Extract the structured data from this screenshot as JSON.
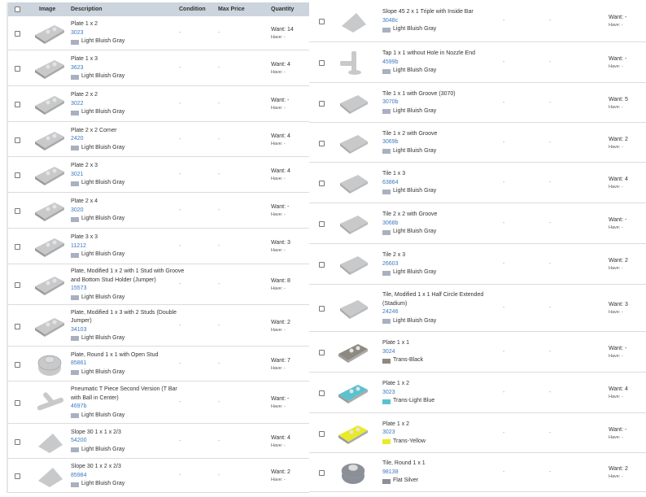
{
  "header": {
    "image": "Image",
    "description": "Description",
    "condition": "Condition",
    "max_price": "Max Price",
    "quantity": "Quantity"
  },
  "left_items": [
    {
      "name": "Plate 1 x 2",
      "number": "3023",
      "color": "Light Bluish Gray",
      "swatch": "#a9b0c0",
      "condition": "-",
      "max_price": "-",
      "want": "Want: 14",
      "have": "Have: -",
      "icon": "plate-1x2-icon"
    },
    {
      "name": "Plate 1 x 3",
      "number": "3623",
      "color": "Light Bluish Gray",
      "swatch": "#a9b0c0",
      "condition": "-",
      "max_price": "-",
      "want": "Want: 4",
      "have": "Have: -",
      "icon": "plate-1x3-icon"
    },
    {
      "name": "Plate 2 x 2",
      "number": "3022",
      "color": "Light Bluish Gray",
      "swatch": "#a9b0c0",
      "condition": "-",
      "max_price": "-",
      "want": "Want: -",
      "have": "Have: -",
      "icon": "plate-2x2-icon"
    },
    {
      "name": "Plate 2 x 2 Corner",
      "number": "2420",
      "color": "Light Bluish Gray",
      "swatch": "#a9b0c0",
      "condition": "-",
      "max_price": "-",
      "want": "Want: 4",
      "have": "Have: -",
      "icon": "plate-corner-icon"
    },
    {
      "name": "Plate 2 x 3",
      "number": "3021",
      "color": "Light Bluish Gray",
      "swatch": "#a9b0c0",
      "condition": "-",
      "max_price": "-",
      "want": "Want: 4",
      "have": "Have: -",
      "icon": "plate-2x3-icon"
    },
    {
      "name": "Plate 2 x 4",
      "number": "3020",
      "color": "Light Bluish Gray",
      "swatch": "#a9b0c0",
      "condition": "-",
      "max_price": "-",
      "want": "Want: -",
      "have": "Have: -",
      "icon": "plate-2x4-icon"
    },
    {
      "name": "Plate 3 x 3",
      "number": "11212",
      "color": "Light Bluish Gray",
      "swatch": "#a9b0c0",
      "condition": "-",
      "max_price": "-",
      "want": "Want: 3",
      "have": "Have: -",
      "icon": "plate-3x3-icon"
    },
    {
      "name": "Plate, Modified 1 x 2 with 1 Stud with Groove and Bottom Stud Holder (Jumper)",
      "number": "15573",
      "color": "Light Bluish Gray",
      "swatch": "#a9b0c0",
      "condition": "-",
      "max_price": "-",
      "want": "Want: 8",
      "have": "Have: -",
      "icon": "jumper-plate-icon"
    },
    {
      "name": "Plate, Modified 1 x 3 with 2 Studs (Double Jumper)",
      "number": "34103",
      "color": "Light Bluish Gray",
      "swatch": "#a9b0c0",
      "condition": "-",
      "max_price": "-",
      "want": "Want: 2",
      "have": "Have: -",
      "icon": "double-jumper-icon"
    },
    {
      "name": "Plate, Round 1 x 1 with Open Stud",
      "number": "85861",
      "color": "Light Bluish Gray",
      "swatch": "#a9b0c0",
      "condition": "-",
      "max_price": "-",
      "want": "Want: 7",
      "have": "Have: -",
      "icon": "round-plate-icon"
    },
    {
      "name": "Pneumatic T Piece Second Version (T Bar with Ball in Center)",
      "number": "4697b",
      "color": "Light Bluish Gray",
      "swatch": "#a9b0c0",
      "condition": "-",
      "max_price": "-",
      "want": "Want: -",
      "have": "Have: -",
      "icon": "t-piece-icon"
    },
    {
      "name": "Slope 30 1 x 1 x 2/3",
      "number": "54200",
      "color": "Light Bluish Gray",
      "swatch": "#a9b0c0",
      "condition": "-",
      "max_price": "-",
      "want": "Want: 4",
      "have": "Have: -",
      "icon": "slope-icon"
    },
    {
      "name": "Slope 30 1 x 2 x 2/3",
      "number": "85984",
      "color": "Light Bluish Gray",
      "swatch": "#a9b0c0",
      "condition": "-",
      "max_price": "-",
      "want": "Want: 2",
      "have": "Have: -",
      "icon": "slope-icon"
    }
  ],
  "right_items": [
    {
      "name": "Slope 45 2 x 1 Triple with Inside Bar",
      "number": "3048c",
      "color": "Light Bluish Gray",
      "swatch": "#a9b0c0",
      "condition": "-",
      "max_price": "-",
      "want": "Want: -",
      "have": "Have: -",
      "icon": "slope-triple-icon"
    },
    {
      "name": "Tap 1 x 1 without Hole in Nozzle End",
      "number": "4599b",
      "color": "Light Bluish Gray",
      "swatch": "#a9b0c0",
      "condition": "-",
      "max_price": "-",
      "want": "Want: -",
      "have": "Have: -",
      "icon": "tap-icon"
    },
    {
      "name": "Tile 1 x 1 with Groove (3070)",
      "number": "3070b",
      "color": "Light Bluish Gray",
      "swatch": "#a9b0c0",
      "condition": "-",
      "max_price": "-",
      "want": "Want: 5",
      "have": "Have: -",
      "icon": "tile-1x1-icon"
    },
    {
      "name": "Tile 1 x 2 with Groove",
      "number": "3069b",
      "color": "Light Bluish Gray",
      "swatch": "#a9b0c0",
      "condition": "-",
      "max_price": "-",
      "want": "Want: 2",
      "have": "Have: -",
      "icon": "tile-1x2-icon"
    },
    {
      "name": "Tile 1 x 3",
      "number": "63864",
      "color": "Light Bluish Gray",
      "swatch": "#a9b0c0",
      "condition": "-",
      "max_price": "-",
      "want": "Want: 4",
      "have": "Have: -",
      "icon": "tile-1x3-icon"
    },
    {
      "name": "Tile 2 x 2 with Groove",
      "number": "3068b",
      "color": "Light Bluish Gray",
      "swatch": "#a9b0c0",
      "condition": "-",
      "max_price": "-",
      "want": "Want: -",
      "have": "Have: -",
      "icon": "tile-2x2-icon"
    },
    {
      "name": "Tile 2 x 3",
      "number": "26603",
      "color": "Light Bluish Gray",
      "swatch": "#a9b0c0",
      "condition": "-",
      "max_price": "-",
      "want": "Want: 2",
      "have": "Have: -",
      "icon": "tile-2x3-icon"
    },
    {
      "name": "Tile, Modified 1 x 1 Half Circle Extended (Stadium)",
      "number": "24246",
      "color": "Light Bluish Gray",
      "swatch": "#a9b0c0",
      "condition": "-",
      "max_price": "-",
      "want": "Want: 3",
      "have": "Have: -",
      "icon": "half-circle-tile-icon"
    },
    {
      "name": "Plate 1 x 1",
      "number": "3024",
      "color": "Trans-Black",
      "swatch": "#8e8a80",
      "condition": "-",
      "max_price": "-",
      "want": "Want: -",
      "have": "Have: -",
      "icon": "plate-1x1-icon"
    },
    {
      "name": "Plate 1 x 2",
      "number": "3023",
      "color": "Trans-Light Blue",
      "swatch": "#5cc1cf",
      "condition": "-",
      "max_price": "-",
      "want": "Want: 4",
      "have": "Have: -",
      "icon": "plate-1x2-icon"
    },
    {
      "name": "Plate 1 x 2",
      "number": "3023",
      "color": "Trans-Yellow",
      "swatch": "#e8ea2a",
      "condition": "-",
      "max_price": "-",
      "want": "Want: -",
      "have": "Have: -",
      "icon": "plate-1x2-icon"
    },
    {
      "name": "Tile, Round 1 x 1",
      "number": "98138",
      "color": "Flat Silver",
      "swatch": "#8a8f98",
      "condition": "-",
      "max_price": "-",
      "want": "Want: 2",
      "have": "Have: -",
      "icon": "round-tile-icon"
    }
  ]
}
